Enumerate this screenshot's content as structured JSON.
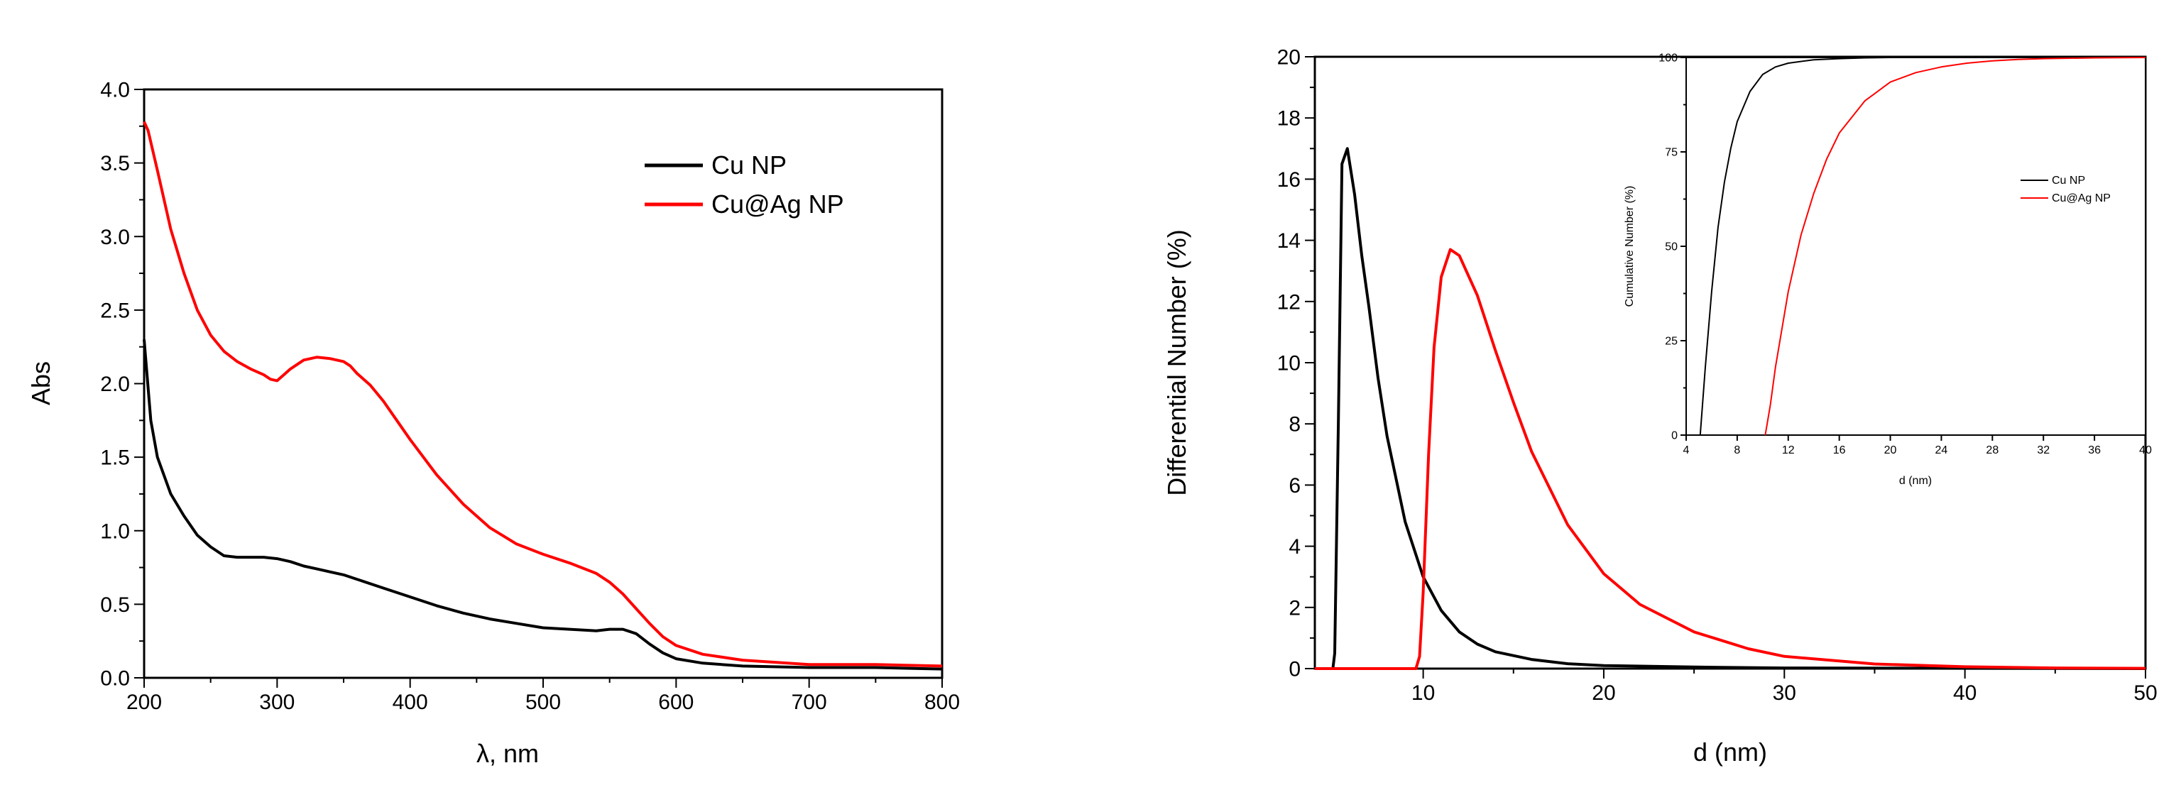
{
  "chart_data": [
    {
      "type": "line",
      "xlabel": "λ, nm",
      "ylabel": "Abs",
      "xlim": [
        200,
        800
      ],
      "ylim": [
        0,
        4
      ],
      "xticks": [
        200,
        300,
        400,
        500,
        600,
        700,
        800
      ],
      "xtick_labels": [
        "200",
        "300",
        "400",
        "500",
        "600",
        "700",
        "800"
      ],
      "yticks": [
        0,
        0.5,
        1,
        1.5,
        2,
        2.5,
        3,
        3.5,
        4
      ],
      "ytick_labels": [
        "0.0",
        "0.5",
        "1.0",
        "1.5",
        "2.0",
        "2.5",
        "3.0",
        "3.5",
        "4.0"
      ],
      "legend_position": "top-right",
      "series": [
        {
          "name": "Cu NP",
          "color": "#000000",
          "x": [
            200,
            205,
            210,
            220,
            230,
            240,
            250,
            260,
            270,
            280,
            290,
            300,
            310,
            320,
            330,
            340,
            350,
            360,
            380,
            400,
            420,
            440,
            460,
            480,
            500,
            520,
            540,
            550,
            560,
            570,
            580,
            590,
            600,
            620,
            650,
            700,
            750,
            800
          ],
          "y": [
            2.3,
            1.75,
            1.5,
            1.25,
            1.1,
            0.97,
            0.89,
            0.83,
            0.82,
            0.82,
            0.82,
            0.81,
            0.79,
            0.76,
            0.74,
            0.72,
            0.7,
            0.67,
            0.61,
            0.55,
            0.49,
            0.44,
            0.4,
            0.37,
            0.34,
            0.33,
            0.32,
            0.33,
            0.33,
            0.3,
            0.23,
            0.17,
            0.13,
            0.1,
            0.08,
            0.07,
            0.07,
            0.06
          ]
        },
        {
          "name": "Cu@Ag NP",
          "color": "#ff0000",
          "x": [
            200,
            203,
            210,
            220,
            230,
            240,
            250,
            260,
            270,
            280,
            290,
            295,
            300,
            305,
            310,
            320,
            330,
            340,
            350,
            355,
            360,
            370,
            380,
            390,
            400,
            420,
            440,
            460,
            480,
            500,
            520,
            540,
            550,
            560,
            570,
            580,
            590,
            600,
            620,
            650,
            700,
            750,
            800
          ],
          "y": [
            3.78,
            3.72,
            3.45,
            3.05,
            2.75,
            2.5,
            2.33,
            2.22,
            2.15,
            2.1,
            2.06,
            2.03,
            2.02,
            2.06,
            2.1,
            2.16,
            2.18,
            2.17,
            2.15,
            2.12,
            2.07,
            1.99,
            1.88,
            1.75,
            1.62,
            1.38,
            1.18,
            1.02,
            0.91,
            0.84,
            0.78,
            0.71,
            0.65,
            0.57,
            0.47,
            0.37,
            0.28,
            0.22,
            0.16,
            0.12,
            0.09,
            0.09,
            0.08
          ]
        }
      ]
    },
    {
      "type": "line",
      "xlabel": "d (nm)",
      "ylabel": "Differential Number (%)",
      "xlim": [
        4,
        50
      ],
      "ylim": [
        0,
        20
      ],
      "xticks": [
        10,
        20,
        30,
        40,
        50
      ],
      "xtick_labels": [
        "10",
        "20",
        "30",
        "40",
        "50"
      ],
      "yticks": [
        0,
        2,
        4,
        6,
        8,
        10,
        12,
        14,
        16,
        18,
        20
      ],
      "ytick_labels": [
        "0",
        "2",
        "4",
        "6",
        "8",
        "10",
        "12",
        "14",
        "16",
        "18",
        "20"
      ],
      "series": [
        {
          "name": "Cu NP",
          "color": "#000000",
          "x": [
            4,
            5,
            5.1,
            5.3,
            5.5,
            5.8,
            6.2,
            6.6,
            7,
            7.5,
            8,
            9,
            10,
            11,
            12,
            13,
            14,
            16,
            18,
            20,
            25,
            30,
            40,
            50
          ],
          "y": [
            0,
            0,
            0.5,
            8,
            16.5,
            17.0,
            15.5,
            13.5,
            11.8,
            9.5,
            7.6,
            4.8,
            3.0,
            1.9,
            1.2,
            0.8,
            0.55,
            0.3,
            0.16,
            0.1,
            0.05,
            0.02,
            0.01,
            0
          ]
        },
        {
          "name": "Cu@Ag NP",
          "color": "#ff0000",
          "x": [
            4,
            9.6,
            9.8,
            10,
            10.3,
            10.6,
            11,
            11.5,
            12,
            13,
            14,
            15,
            16,
            18,
            20,
            22,
            25,
            28,
            30,
            35,
            40,
            45,
            50
          ],
          "y": [
            0,
            0,
            0.4,
            2.5,
            7,
            10.5,
            12.8,
            13.7,
            13.5,
            12.2,
            10.4,
            8.7,
            7.1,
            4.7,
            3.1,
            2.1,
            1.2,
            0.65,
            0.4,
            0.15,
            0.06,
            0.02,
            0.01
          ]
        }
      ]
    },
    {
      "type": "line",
      "role": "inset",
      "xlabel": "d (nm)",
      "ylabel": "Cumulative Number (%)",
      "xlim": [
        4,
        40
      ],
      "ylim": [
        0,
        100
      ],
      "xticks": [
        4,
        8,
        12,
        16,
        20,
        24,
        28,
        32,
        36,
        40
      ],
      "xtick_labels": [
        "4",
        "8",
        "12",
        "16",
        "20",
        "24",
        "28",
        "32",
        "36",
        "40"
      ],
      "yticks": [
        0,
        25,
        50,
        75,
        100
      ],
      "ytick_labels": [
        "0",
        "25",
        "50",
        "75",
        "100"
      ],
      "legend_position": "center-right",
      "series": [
        {
          "name": "Cu NP",
          "color": "#000000",
          "x": [
            5.1,
            5.5,
            6,
            6.5,
            7,
            7.5,
            8,
            9,
            10,
            11,
            12,
            14,
            16,
            18,
            20,
            24,
            30,
            40
          ],
          "y": [
            0,
            18,
            38,
            55,
            67,
            76,
            83,
            91,
            95.5,
            97.5,
            98.5,
            99.4,
            99.7,
            99.9,
            100,
            100,
            100,
            100
          ]
        },
        {
          "name": "Cu@Ag NP",
          "color": "#ff0000",
          "x": [
            10.2,
            10.6,
            11,
            11.5,
            12,
            13,
            14,
            15,
            16,
            18,
            20,
            22,
            24,
            26,
            28,
            30,
            32,
            36,
            40
          ],
          "y": [
            0,
            8,
            18,
            28,
            38,
            53,
            64,
            73,
            80,
            88.5,
            93.5,
            96,
            97.5,
            98.5,
            99.1,
            99.5,
            99.7,
            99.9,
            100
          ]
        }
      ]
    }
  ]
}
